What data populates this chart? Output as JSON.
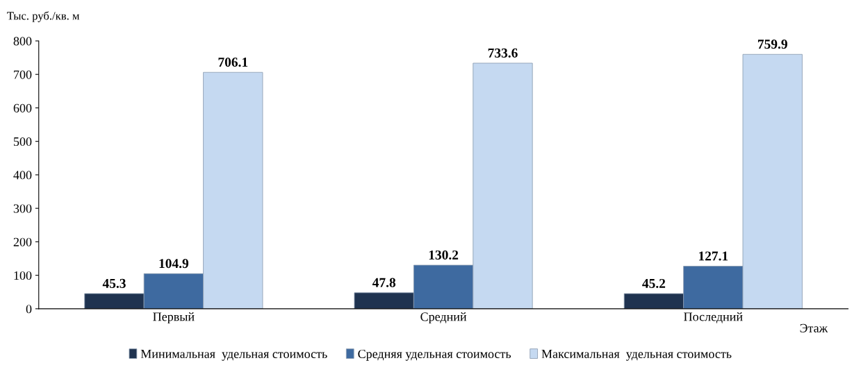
{
  "chart_data": {
    "type": "bar",
    "ylabel": "Тыс. руб./кв. м",
    "xlabel": "Этаж",
    "categories": [
      "Первый",
      "Средний",
      "Последний"
    ],
    "series": [
      {
        "name": "Минимальная  удельная стоимость",
        "color": "#1f3350",
        "values": [
          45.3,
          47.8,
          45.2
        ]
      },
      {
        "name": "Средняя удельная стоимость",
        "color": "#3e6aa0",
        "values": [
          104.9,
          130.2,
          127.1
        ]
      },
      {
        "name": "Максимальная  удельная стоимость",
        "color": "#c5d9f1",
        "values": [
          706.1,
          733.6,
          759.9
        ]
      }
    ],
    "ylim": [
      0,
      800
    ],
    "yticks": [
      0,
      100,
      200,
      300,
      400,
      500,
      600,
      700,
      800
    ],
    "data_labels": true,
    "grid": false,
    "legend": "bottom"
  }
}
